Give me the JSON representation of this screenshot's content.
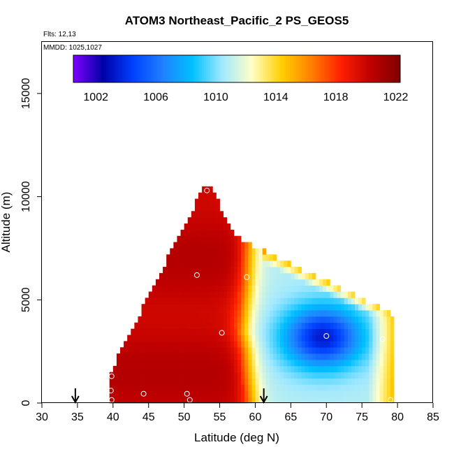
{
  "chart_data": {
    "type": "heatmap",
    "title": "ATOM3 Northeast_Pacific_2 PS_GEOS5",
    "annotations": [
      "Flts: 12,13",
      "MMDD: 1025,1027"
    ],
    "xlabel": "Latitude (deg N)",
    "ylabel": "Altitude (m)",
    "xlim": [
      30,
      85
    ],
    "ylim": [
      0,
      17500
    ],
    "x_ticks": [
      30,
      35,
      40,
      45,
      50,
      55,
      60,
      65,
      70,
      75,
      80,
      85
    ],
    "y_ticks": [
      0,
      5000,
      10000,
      15000
    ],
    "colorbar": {
      "range": [
        1000.5,
        1022.3
      ],
      "tick_values": [
        1002,
        1006,
        1010,
        1014,
        1018,
        1022
      ],
      "tick_labels": [
        "1002",
        "1006",
        "1010",
        "1014",
        "1018",
        "1022"
      ],
      "colors": [
        "#8000ff",
        "#0000a8",
        "#0040ff",
        "#2080ff",
        "#00c0ff",
        "#a0e8ff",
        "#ffffc8",
        "#ffd000",
        "#ff8000",
        "#ff2000",
        "#c00000",
        "#800000"
      ]
    },
    "flight_markers_lat": [
      34.7,
      61.2
    ],
    "sample_points": [
      {
        "lat": 53.2,
        "alt": 10300
      },
      {
        "lat": 51.8,
        "alt": 6200
      },
      {
        "lat": 58.8,
        "alt": 6100
      },
      {
        "lat": 55.3,
        "alt": 3400
      },
      {
        "lat": 70.0,
        "alt": 3250
      },
      {
        "lat": 77.9,
        "alt": 3100
      },
      {
        "lat": 39.8,
        "alt": 1300
      },
      {
        "lat": 39.7,
        "alt": 600
      },
      {
        "lat": 39.8,
        "alt": 150
      },
      {
        "lat": 44.3,
        "alt": 450
      },
      {
        "lat": 50.4,
        "alt": 450
      },
      {
        "lat": 50.8,
        "alt": 150
      },
      {
        "lat": 79.0,
        "alt": 150
      }
    ],
    "field": {
      "lat_range": [
        39.5,
        79.5
      ],
      "alt_range": [
        0,
        10500
      ],
      "min_lat_at_alt": [
        [
          0,
          39.5
        ],
        [
          1500,
          39.6
        ],
        [
          10500,
          52.8
        ]
      ],
      "max_lat_at_alt": [
        [
          0,
          79.3
        ],
        [
          4300,
          79.5
        ],
        [
          8000,
          57.5
        ],
        [
          10500,
          53.6
        ]
      ],
      "background_pressure": 1020.3,
      "front_center": [
        [
          0,
          59.5
        ],
        [
          2500,
          58.8
        ],
        [
          3500,
          58.2
        ],
        [
          6000,
          59.0
        ],
        [
          8000,
          59.3
        ]
      ],
      "low_center": {
        "lat": 69.5,
        "alt": 3200,
        "pressure": 1002.5
      }
    }
  }
}
